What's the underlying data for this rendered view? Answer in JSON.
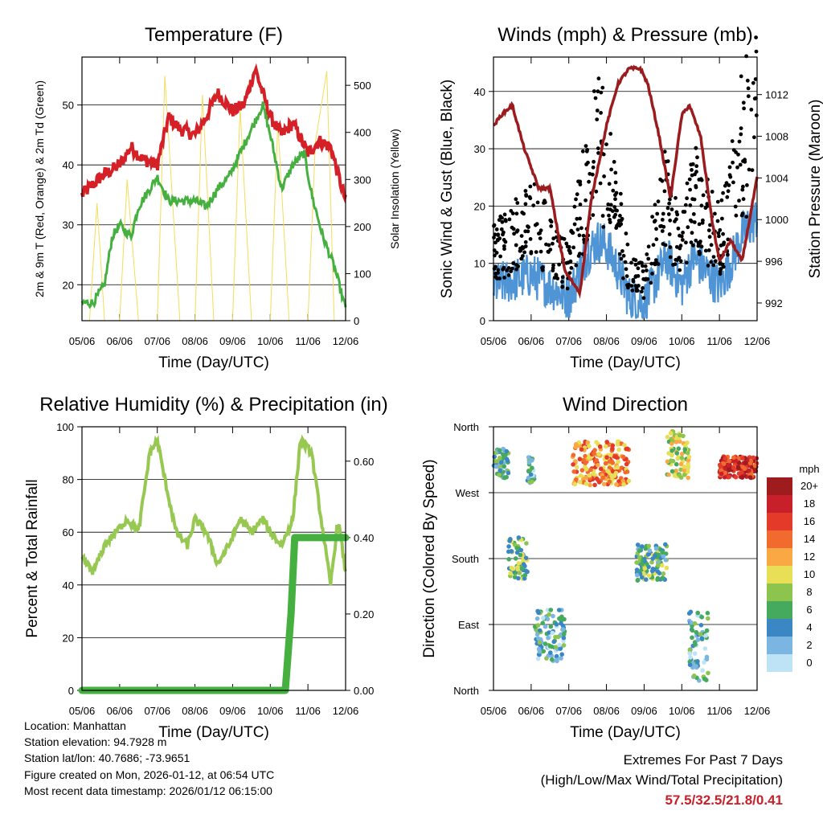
{
  "chart_data": [
    {
      "type": "line",
      "title": "Temperature (F)",
      "xlabel": "Time (Day/UTC)",
      "ylabel": "2m & 9m T (Red, Orange) & 2m Td (Green)",
      "ylabel_right": "Solar Insolation (Yellow)",
      "x_ticks": [
        "05/06",
        "06/06",
        "07/06",
        "08/06",
        "09/06",
        "10/06",
        "11/06",
        "12/06"
      ],
      "ylim": [
        14,
        58
      ],
      "yticks": [
        20,
        30,
        40,
        50
      ],
      "ylim_right": [
        0,
        560
      ],
      "yticks_right": [
        0,
        100,
        200,
        300,
        400,
        500
      ],
      "grid": true,
      "series": [
        {
          "name": "2m T",
          "color": "#d42026",
          "x": [
            0,
            0.5,
            1,
            1.3,
            1.6,
            2,
            2.3,
            2.6,
            3,
            3.3,
            3.6,
            4,
            4.3,
            4.6,
            5,
            5.3,
            5.6,
            6,
            6.3,
            6.6,
            7
          ],
          "values": [
            35,
            38,
            40,
            43,
            41,
            40,
            48,
            46,
            45,
            48,
            52,
            49,
            50,
            56,
            48,
            45,
            47,
            42,
            44,
            43,
            34
          ]
        },
        {
          "name": "2m Td",
          "color": "#45b040",
          "x": [
            0,
            0.3,
            0.6,
            0.8,
            1,
            1.3,
            1.5,
            1.8,
            2,
            2.3,
            2.6,
            3,
            3.3,
            3.6,
            3.9,
            4.2,
            4.5,
            4.8,
            5,
            5.3,
            5.6,
            5.9,
            6.1,
            6.4,
            6.7,
            7
          ],
          "values": [
            17,
            17,
            20,
            28,
            30,
            28,
            33,
            36,
            38,
            34,
            34,
            34,
            33,
            36,
            38,
            42,
            46,
            50,
            45,
            36,
            40,
            42,
            35,
            28,
            23,
            16
          ]
        },
        {
          "name": "Solar Insolation",
          "color": "#f3dd5b",
          "axis": "right",
          "x": [
            0,
            0.2,
            0.4,
            0.6,
            1,
            1.2,
            1.5,
            1.7,
            2,
            2.2,
            2.6,
            2.8,
            3,
            3.2,
            3.5,
            3.7,
            4,
            4.2,
            4.5,
            4.7,
            5,
            5.2,
            5.5,
            5.8,
            6,
            6.2,
            6.5,
            6.7,
            7
          ],
          "values": [
            0,
            0,
            250,
            0,
            0,
            300,
            0,
            0,
            0,
            520,
            0,
            0,
            0,
            480,
            0,
            0,
            0,
            450,
            0,
            0,
            0,
            420,
            0,
            0,
            0,
            380,
            530,
            0,
            0
          ]
        }
      ]
    },
    {
      "type": "scatter",
      "title": "Winds (mph) & Pressure (mb)",
      "xlabel": "Time (Day/UTC)",
      "ylabel": "Sonic Wind & Gust (Blue, Black)",
      "ylabel_right": "Station Pressure (Maroon)",
      "x_ticks": [
        "05/06",
        "06/06",
        "07/06",
        "08/06",
        "09/06",
        "10/06",
        "11/06",
        "12/06"
      ],
      "ylim": [
        0,
        46
      ],
      "yticks": [
        0,
        10,
        20,
        30,
        40
      ],
      "ylim_right": [
        990.3,
        1015.6
      ],
      "yticks_right": [
        992,
        996,
        1000,
        1004,
        1008,
        1012
      ],
      "grid": true,
      "series": [
        {
          "name": "Gust",
          "color": "#000000",
          "x": [
            0,
            0.5,
            1,
            1.5,
            2,
            2.5,
            2.8,
            3,
            3.3,
            3.6,
            4,
            4.3,
            4.6,
            5,
            5.3,
            5.6,
            6,
            6.3,
            6.6,
            7
          ],
          "values": [
            12,
            14,
            18,
            13,
            9,
            25,
            30,
            28,
            18,
            8,
            7,
            15,
            22,
            12,
            22,
            18,
            14,
            20,
            32,
            35
          ]
        },
        {
          "name": "Wind",
          "color": "#4f95d5",
          "x": [
            0,
            0.5,
            1,
            1.5,
            2,
            2.5,
            2.8,
            3,
            3.3,
            3.6,
            4,
            4.3,
            4.6,
            5,
            5.3,
            5.6,
            6,
            6.3,
            6.6,
            7
          ],
          "values": [
            6,
            7,
            8,
            6,
            4,
            12,
            14,
            13,
            9,
            4,
            3,
            7,
            11,
            6,
            11,
            9,
            6,
            10,
            15,
            18
          ]
        },
        {
          "name": "Station Pressure",
          "color": "#9b1c1f",
          "axis": "right",
          "x": [
            0,
            0.2,
            0.5,
            0.8,
            1.2,
            1.5,
            1.9,
            2.3,
            2.6,
            3,
            3.3,
            3.6,
            3.9,
            4.1,
            4.4,
            4.7,
            5,
            5.2,
            5.5,
            5.8,
            6,
            6.3,
            6.6,
            7
          ],
          "values": [
            1009,
            1010,
            1011,
            1007,
            1003,
            1003,
            995,
            993,
            1002,
            1009,
            1013,
            1014.5,
            1014.5,
            1013,
            1008,
            1002,
            1010,
            1011,
            1008,
            1000,
            996,
            998,
            996,
            1004
          ]
        }
      ]
    },
    {
      "type": "line",
      "title": "Relative Humidity (%) & Precipitation (in)",
      "xlabel": "Time (Day/UTC)",
      "ylabel": "Percent & Total Rainfall",
      "x_ticks": [
        "05/06",
        "06/06",
        "07/06",
        "08/06",
        "09/06",
        "10/06",
        "11/06",
        "12/06"
      ],
      "ylim": [
        0,
        100
      ],
      "yticks": [
        0,
        20,
        40,
        60,
        80,
        100
      ],
      "ylim_right": [
        0,
        0.69
      ],
      "yticks_right": [
        "0.00",
        "0.20",
        "0.40",
        "0.60"
      ],
      "grid": true,
      "series": [
        {
          "name": "Relative Humidity",
          "color": "#97c852",
          "x": [
            0,
            0.3,
            0.6,
            0.9,
            1.2,
            1.5,
            1.8,
            2,
            2.2,
            2.5,
            2.8,
            3,
            3.3,
            3.6,
            3.9,
            4.2,
            4.5,
            4.8,
            5,
            5.3,
            5.6,
            5.8,
            6.1,
            6.4,
            6.6,
            6.8,
            7
          ],
          "values": [
            50,
            45,
            55,
            60,
            65,
            60,
            90,
            95,
            80,
            60,
            55,
            65,
            60,
            48,
            55,
            65,
            60,
            65,
            60,
            55,
            65,
            95,
            90,
            60,
            40,
            65,
            45
          ]
        },
        {
          "name": "Total Precipitation",
          "color": "#45b040",
          "axis": "right",
          "x": [
            0,
            5.4,
            5.55,
            5.65,
            7
          ],
          "values": [
            0,
            0,
            0.2,
            0.4,
            0.4
          ]
        }
      ]
    },
    {
      "type": "scatter",
      "title": "Wind Direction",
      "xlabel": "Time (Day/UTC)",
      "ylabel": "Direction (Colored By Speed)",
      "x_ticks": [
        "05/06",
        "06/06",
        "07/06",
        "08/06",
        "09/06",
        "10/06",
        "11/06",
        "12/06"
      ],
      "y_ticks": [
        "North",
        "East",
        "South",
        "West",
        "North"
      ],
      "ylim": [
        0,
        360
      ],
      "grid": true,
      "colorbar": {
        "title": "mph",
        "labels": [
          "20+",
          "18",
          "16",
          "14",
          "12",
          "10",
          "8",
          "6",
          "4",
          "2",
          "0"
        ],
        "colors": [
          "#9e1b1e",
          "#c8202b",
          "#e33a2a",
          "#f26b2e",
          "#f9a844",
          "#e8df56",
          "#8cc44d",
          "#45aa5e",
          "#3a87c4",
          "#7bb6e2",
          "#bfe3f6"
        ]
      },
      "clusters": [
        {
          "x_start": 0.0,
          "x_end": 0.4,
          "dir_low": 290,
          "dir_high": 330,
          "speed": 5
        },
        {
          "x_start": 0.4,
          "x_end": 0.9,
          "dir_low": 150,
          "dir_high": 210,
          "speed": 7
        },
        {
          "x_start": 0.9,
          "x_end": 1.1,
          "dir_low": 280,
          "dir_high": 320,
          "speed": 4
        },
        {
          "x_start": 1.1,
          "x_end": 1.9,
          "dir_low": 40,
          "dir_high": 110,
          "speed": 4
        },
        {
          "x_start": 2.1,
          "x_end": 3.6,
          "dir_low": 280,
          "dir_high": 340,
          "speed": 13
        },
        {
          "x_start": 3.8,
          "x_end": 4.6,
          "dir_low": 150,
          "dir_high": 200,
          "speed": 6
        },
        {
          "x_start": 4.6,
          "x_end": 5.2,
          "dir_low": 290,
          "dir_high": 355,
          "speed": 9
        },
        {
          "x_start": 5.2,
          "x_end": 5.7,
          "dir_low": 10,
          "dir_high": 110,
          "speed": 4
        },
        {
          "x_start": 6.0,
          "x_end": 7.0,
          "dir_low": 290,
          "dir_high": 320,
          "speed": 17
        }
      ]
    }
  ],
  "info": {
    "location": "Location: Manhattan",
    "elevation": "Station elevation: 94.7928 m",
    "latlon": "Station lat/lon: 40.7686; -73.9651",
    "created": "Figure created on Mon, 2026-01-12, at 06:54 UTC",
    "timestamp": "Most recent data timestamp: 2026/01/12 06:15:00"
  },
  "extremes": {
    "title": "Extremes For Past 7 Days",
    "subtitle": "(High/Low/Max Wind/Total Precipitation)",
    "values": "57.5/32.5/21.8/0.41"
  }
}
